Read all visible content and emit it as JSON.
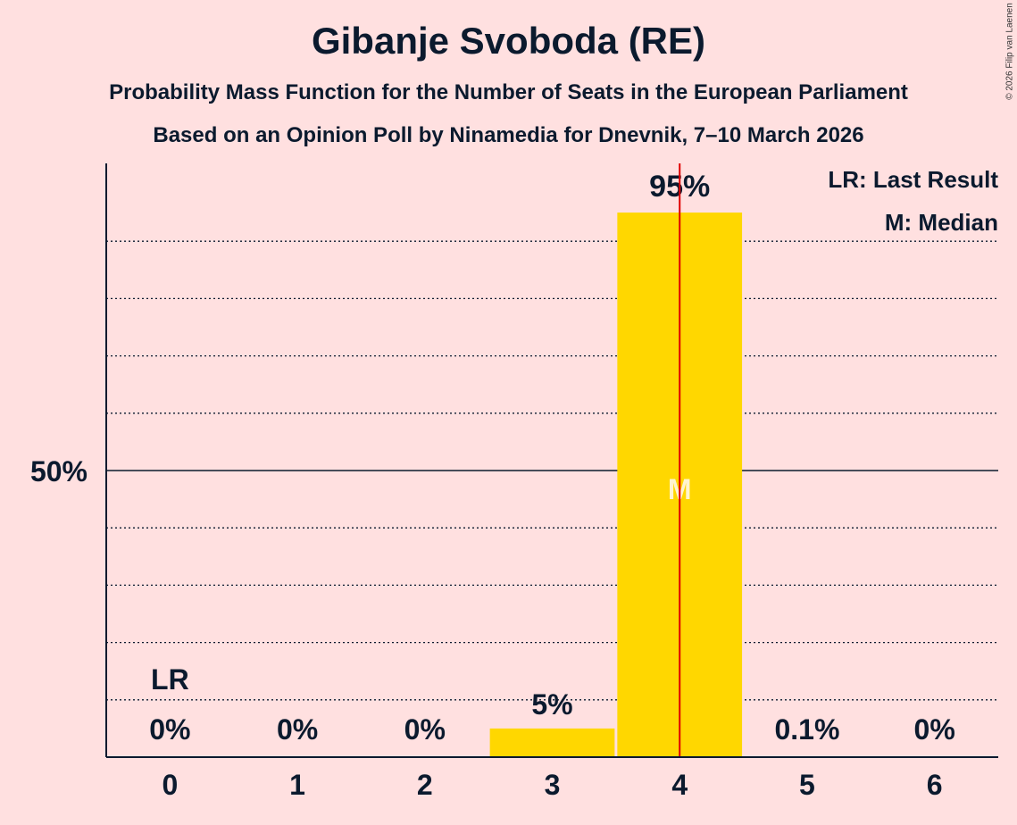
{
  "chart_data": {
    "type": "bar",
    "title": "Gibanje Svoboda (RE)",
    "subtitle1": "Probability Mass Function for the Number of Seats in the European Parliament",
    "subtitle2": "Based on an Opinion Poll by Ninamedia for Dnevnik, 7–10 March 2026",
    "categories": [
      "0",
      "1",
      "2",
      "3",
      "4",
      "5",
      "6"
    ],
    "values": [
      0,
      0,
      0,
      5,
      95,
      0.1,
      0
    ],
    "value_labels": [
      "0%",
      "0%",
      "0%",
      "5%",
      "95%",
      "0.1%",
      "0%"
    ],
    "ylim": [
      0,
      100
    ],
    "ytick_label": "50%",
    "ytick_value": 50,
    "gridlines_every": 10,
    "last_result_seat": 0,
    "last_result_marker": "LR",
    "median_seat": 4,
    "median_marker": "M",
    "threshold_line_at": 4.5,
    "legend": [
      "LR: Last Result",
      "M: Median"
    ],
    "legend_placement": "top-right",
    "bar_color": "#FFD700",
    "threshold_color": "#E00000",
    "copyright": "© 2026 Filip van Laenen"
  }
}
